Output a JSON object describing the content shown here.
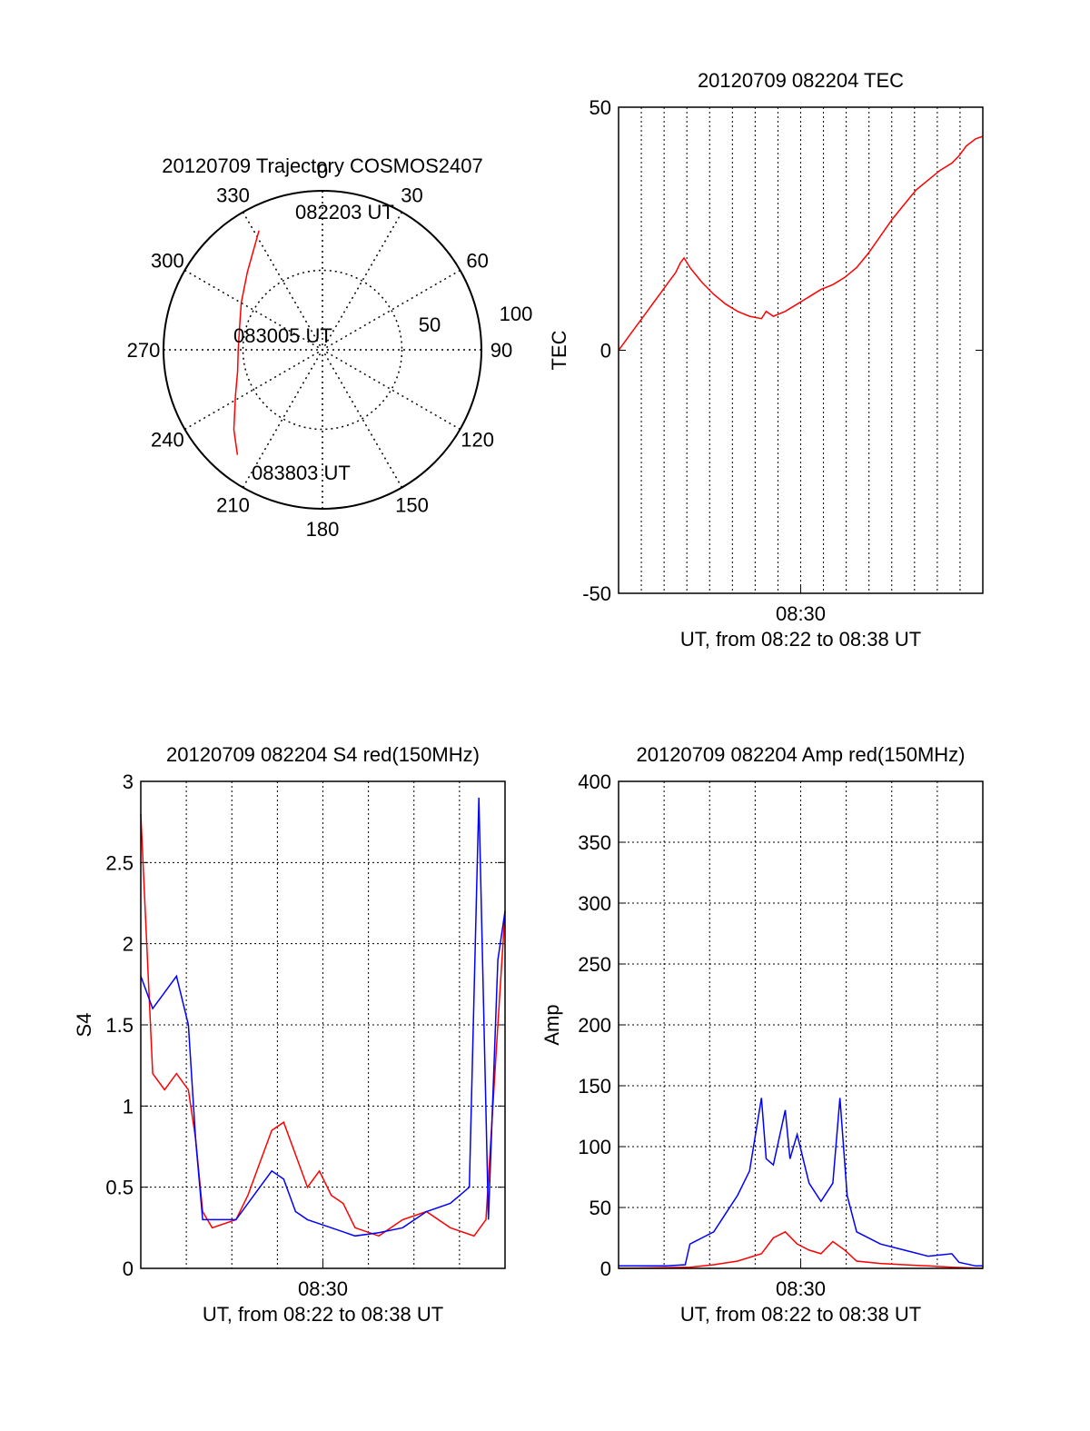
{
  "chart_data": [
    {
      "type": "polar",
      "title": "20120709 Trajectory COSMOS2407",
      "azimuth_labels": [
        "0",
        "30",
        "60",
        "90",
        "120",
        "150",
        "180",
        "210",
        "240",
        "270",
        "300",
        "330"
      ],
      "radial_labels": [
        "50",
        "100"
      ],
      "annotations": [
        "082203 UT",
        "083005 UT",
        "083803 UT"
      ],
      "series": [
        {
          "color": "#ff0000",
          "points": [
            {
              "az": 332,
              "r": 85
            },
            {
              "az": 316,
              "r": 68
            },
            {
              "az": 300,
              "r": 59
            },
            {
              "az": 285,
              "r": 54
            },
            {
              "az": 270,
              "r": 53
            },
            {
              "az": 256,
              "r": 55
            },
            {
              "az": 242,
              "r": 62
            },
            {
              "az": 228,
              "r": 75
            },
            {
              "az": 219,
              "r": 85
            }
          ]
        }
      ]
    },
    {
      "type": "line",
      "title": "20120709 082204 TEC",
      "ylabel": "TEC",
      "xlabel": "UT, from 08:22 to 08:38 UT",
      "x_tick_labels": [
        "08:30"
      ],
      "y_tick_labels": [
        "50",
        "0",
        "-50"
      ],
      "ylim": [
        -50,
        50
      ],
      "series": [
        {
          "color": "#ff0000",
          "points": [
            [
              0,
              0
            ],
            [
              0.3,
              2
            ],
            [
              0.6,
              4
            ],
            [
              0.9,
              6
            ],
            [
              1.2,
              8
            ],
            [
              1.5,
              10
            ],
            [
              1.8,
              12
            ],
            [
              2.1,
              14
            ],
            [
              2.4,
              16
            ],
            [
              2.6,
              18
            ],
            [
              2.75,
              19
            ],
            [
              3,
              17
            ],
            [
              3.5,
              14
            ],
            [
              4,
              11.5
            ],
            [
              4.5,
              9.5
            ],
            [
              5,
              8
            ],
            [
              5.5,
              7
            ],
            [
              6,
              6.5
            ],
            [
              6.2,
              8
            ],
            [
              6.5,
              7
            ],
            [
              7,
              8
            ],
            [
              7.5,
              9.5
            ],
            [
              8,
              11
            ],
            [
              8.5,
              12.5
            ],
            [
              9,
              13.5
            ],
            [
              9.5,
              15
            ],
            [
              10,
              17
            ],
            [
              10.5,
              20
            ],
            [
              11,
              23.5
            ],
            [
              11.5,
              27
            ],
            [
              12,
              30
            ],
            [
              12.5,
              33
            ],
            [
              13,
              35
            ],
            [
              13.5,
              37
            ],
            [
              14,
              38.5
            ],
            [
              14.3,
              40
            ],
            [
              14.6,
              42
            ],
            [
              15,
              43.5
            ],
            [
              15.3,
              44
            ]
          ]
        }
      ]
    },
    {
      "type": "line",
      "title": "20120709 082204 S4 red(150MHz)",
      "ylabel": "S4",
      "xlabel": "UT, from 08:22 to 08:38 UT",
      "x_tick_labels": [
        "08:30"
      ],
      "y_tick_labels": [
        "3",
        "2.5",
        "2",
        "1.5",
        "1",
        "0.5",
        "0"
      ],
      "ylim": [
        0,
        3
      ],
      "series": [
        {
          "color": "#ff0000",
          "points": [
            [
              0,
              2.8
            ],
            [
              0.5,
              1.2
            ],
            [
              1,
              1.1
            ],
            [
              1.5,
              1.2
            ],
            [
              2,
              1.1
            ],
            [
              2.3,
              0.8
            ],
            [
              2.6,
              0.35
            ],
            [
              3,
              0.25
            ],
            [
              4,
              0.3
            ],
            [
              4.5,
              0.45
            ],
            [
              5,
              0.65
            ],
            [
              5.5,
              0.85
            ],
            [
              6,
              0.9
            ],
            [
              6.5,
              0.7
            ],
            [
              7,
              0.5
            ],
            [
              7.5,
              0.6
            ],
            [
              8,
              0.45
            ],
            [
              8.5,
              0.4
            ],
            [
              9,
              0.25
            ],
            [
              10,
              0.2
            ],
            [
              11,
              0.3
            ],
            [
              12,
              0.35
            ],
            [
              13,
              0.25
            ],
            [
              14,
              0.2
            ],
            [
              14.5,
              0.3
            ],
            [
              15,
              1.5
            ],
            [
              15.3,
              2.2
            ]
          ]
        },
        {
          "color": "#0000ff",
          "points": [
            [
              0,
              1.8
            ],
            [
              0.5,
              1.6
            ],
            [
              1,
              1.7
            ],
            [
              1.5,
              1.8
            ],
            [
              2,
              1.5
            ],
            [
              2.3,
              0.8
            ],
            [
              2.6,
              0.3
            ],
            [
              3,
              0.3
            ],
            [
              4,
              0.3
            ],
            [
              5,
              0.5
            ],
            [
              5.5,
              0.6
            ],
            [
              6,
              0.55
            ],
            [
              6.5,
              0.35
            ],
            [
              7,
              0.3
            ],
            [
              8,
              0.25
            ],
            [
              9,
              0.2
            ],
            [
              10,
              0.22
            ],
            [
              11,
              0.25
            ],
            [
              12,
              0.35
            ],
            [
              13,
              0.4
            ],
            [
              13.8,
              0.5
            ],
            [
              14.2,
              2.9
            ],
            [
              14.6,
              0.3
            ],
            [
              15,
              1.9
            ],
            [
              15.3,
              2.2
            ]
          ]
        }
      ]
    },
    {
      "type": "line",
      "title": "20120709 082204 Amp red(150MHz)",
      "ylabel": "Amp",
      "xlabel": "UT, from 08:22 to 08:38 UT",
      "x_tick_labels": [
        "08:30"
      ],
      "y_tick_labels": [
        "400",
        "350",
        "300",
        "250",
        "200",
        "150",
        "100",
        "50",
        "0"
      ],
      "ylim": [
        0,
        400
      ],
      "series": [
        {
          "color": "#0000ff",
          "points": [
            [
              0,
              2
            ],
            [
              2,
              2
            ],
            [
              2.8,
              3
            ],
            [
              3,
              20
            ],
            [
              3.5,
              25
            ],
            [
              4,
              30
            ],
            [
              4.5,
              45
            ],
            [
              5,
              60
            ],
            [
              5.5,
              80
            ],
            [
              6,
              140
            ],
            [
              6.2,
              90
            ],
            [
              6.5,
              85
            ],
            [
              7,
              130
            ],
            [
              7.2,
              90
            ],
            [
              7.5,
              110
            ],
            [
              8,
              70
            ],
            [
              8.5,
              55
            ],
            [
              9,
              70
            ],
            [
              9.3,
              140
            ],
            [
              9.6,
              60
            ],
            [
              10,
              30
            ],
            [
              11,
              20
            ],
            [
              12,
              15
            ],
            [
              13,
              10
            ],
            [
              14,
              12
            ],
            [
              14.3,
              5
            ],
            [
              15,
              2
            ],
            [
              15.3,
              2
            ]
          ]
        },
        {
          "color": "#ff0000",
          "points": [
            [
              0,
              0
            ],
            [
              3,
              1
            ],
            [
              4,
              3
            ],
            [
              5,
              6
            ],
            [
              6,
              12
            ],
            [
              6.5,
              25
            ],
            [
              7,
              30
            ],
            [
              7.5,
              20
            ],
            [
              8,
              15
            ],
            [
              8.5,
              12
            ],
            [
              9,
              22
            ],
            [
              9.5,
              15
            ],
            [
              10,
              6
            ],
            [
              11,
              4
            ],
            [
              12,
              3
            ],
            [
              13,
              2
            ],
            [
              14,
              1
            ],
            [
              15.3,
              0
            ]
          ]
        }
      ]
    }
  ]
}
